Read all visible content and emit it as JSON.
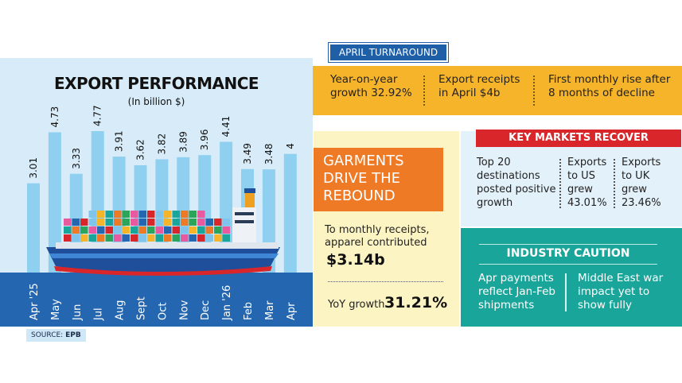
{
  "chart_data": {
    "type": "bar",
    "title": "EXPORT PERFORMANCE",
    "subtitle": "(In billion $)",
    "categories": [
      "Apr '25",
      "May",
      "Jun",
      "Jul",
      "Aug",
      "Sept",
      "Oct",
      "Nov",
      "Dec",
      "Jan '26",
      "Feb",
      "Mar",
      "Apr"
    ],
    "values": [
      3.01,
      4.73,
      3.33,
      4.77,
      3.91,
      3.62,
      3.82,
      3.89,
      3.96,
      4.41,
      3.49,
      3.48,
      4
    ],
    "value_labels": [
      "3.01",
      "4.73",
      "3.33",
      "4.77",
      "3.91",
      "3.62",
      "3.82",
      "3.89",
      "3.96",
      "4.41",
      "3.49",
      "3.48",
      "4"
    ],
    "ylim": [
      0,
      4.77
    ],
    "grid": false,
    "bar_color": "#8fd0f0"
  },
  "source": {
    "label": "SOURCE:",
    "value": "EPB"
  },
  "april_turnaround": {
    "tag": "APRIL TURNAROUND",
    "items": [
      [
        "Year-on-year",
        "growth 32.92%"
      ],
      [
        "Export receipts",
        "in April $4b"
      ],
      [
        "First monthly rise after",
        "8 months of decline"
      ]
    ]
  },
  "garments": {
    "heading": [
      "GARMENTS",
      "DRIVE THE",
      "REBOUND"
    ],
    "text": [
      "To monthly receipts,",
      "apparel contributed"
    ],
    "amount": "$3.14b",
    "yoy_label": "YoY growth",
    "yoy_value": "31.21%"
  },
  "key_markets": {
    "heading": "KEY MARKETS RECOVER",
    "items": [
      [
        "Top 20",
        "destinations",
        "posted positive",
        "growth"
      ],
      [
        "Exports",
        "to US",
        "grew",
        "43.01%"
      ],
      [
        "Exports",
        "to UK",
        "grew",
        "23.46%"
      ]
    ]
  },
  "industry_caution": {
    "heading": "INDUSTRY CAUTION",
    "items": [
      [
        "Apr payments",
        "reflect Jan-Feb",
        "shipments"
      ],
      [
        "Middle East war",
        "impact yet to",
        "show fully"
      ]
    ]
  },
  "colors": {
    "panel_bg": "#d7ecf8",
    "month_band": "#2566b0",
    "april_band": "#f6b42a",
    "garments_orange": "#ee7a26",
    "garments_bg": "#fdf4c4",
    "key_red": "#d8262a",
    "caution_teal": "#1aa59a"
  }
}
